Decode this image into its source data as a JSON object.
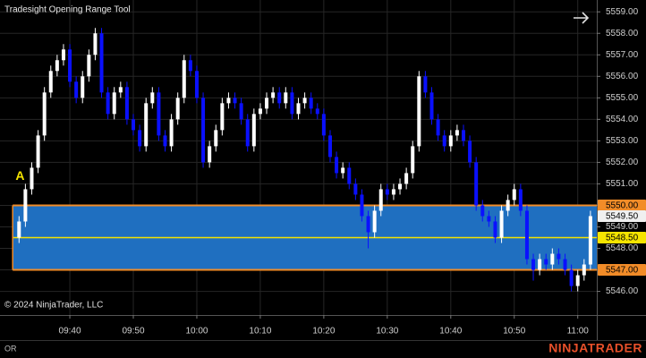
{
  "chart_data": {
    "type": "candlestick",
    "title": "Tradesight Opening Range Tool",
    "copyright": "© 2024 NinjaTrader, LLC",
    "footer_label": "OR",
    "brand": "NINJATRADER",
    "brand_color": "#e8502a",
    "up_color": "#ffffff",
    "down_color": "#0a10ff",
    "grid": true,
    "x": [
      "09:32",
      "09:33",
      "09:34",
      "09:35",
      "09:36",
      "09:37",
      "09:38",
      "09:39",
      "09:40",
      "09:41",
      "09:42",
      "09:43",
      "09:44",
      "09:45",
      "09:46",
      "09:47",
      "09:48",
      "09:49",
      "09:50",
      "09:51",
      "09:52",
      "09:53",
      "09:54",
      "09:55",
      "09:56",
      "09:57",
      "09:58",
      "09:59",
      "10:00",
      "10:01",
      "10:02",
      "10:03",
      "10:04",
      "10:05",
      "10:06",
      "10:07",
      "10:08",
      "10:09",
      "10:10",
      "10:11",
      "10:12",
      "10:13",
      "10:14",
      "10:15",
      "10:16",
      "10:17",
      "10:18",
      "10:19",
      "10:20",
      "10:21",
      "10:22",
      "10:23",
      "10:24",
      "10:25",
      "10:26",
      "10:27",
      "10:28",
      "10:29",
      "10:30",
      "10:31",
      "10:32",
      "10:33",
      "10:34",
      "10:35",
      "10:36",
      "10:37",
      "10:38",
      "10:39",
      "10:40",
      "10:41",
      "10:42",
      "10:43",
      "10:44",
      "10:45",
      "10:46",
      "10:47",
      "10:48",
      "10:49",
      "10:50",
      "10:51",
      "10:52",
      "10:53",
      "10:54",
      "10:55",
      "10:56",
      "10:57",
      "10:58",
      "10:59",
      "11:00",
      "11:01",
      "11:02"
    ],
    "open": [
      5548.5,
      5549.25,
      5550.75,
      5551.75,
      5553.25,
      5555.25,
      5556.25,
      5556.75,
      5557.25,
      5555.75,
      5555,
      5556,
      5557,
      5558,
      5555.25,
      5554.25,
      5555.25,
      5555.5,
      5554,
      5553.5,
      5552.75,
      5554.75,
      5555.25,
      5553.25,
      5552.75,
      5554,
      5555,
      5556.75,
      5556.25,
      5555,
      5552,
      5552.75,
      5553.5,
      5554.75,
      5555,
      5554.75,
      5554,
      5552.75,
      5554.25,
      5554.5,
      5555,
      5555.25,
      5554.75,
      5555.25,
      5554.25,
      5554.75,
      5555,
      5554.5,
      5554.25,
      5553.25,
      5552.25,
      5551.5,
      5551.75,
      5551,
      5550.5,
      5549.5,
      5548.75,
      5549.75,
      5550.75,
      5550.5,
      5550.75,
      5551,
      5551.5,
      5552.75,
      5556,
      5555.25,
      5554,
      5553.25,
      5552.75,
      5553.25,
      5553.5,
      5553,
      5552,
      5550,
      5549.5,
      5549.25,
      5548.5,
      5549.75,
      5550.25,
      5550.75,
      5549.75,
      5547.5,
      5547,
      5547.5,
      5547.25,
      5547.75,
      5547.5,
      5547,
      5546.25,
      5546.75,
      5547.25
    ],
    "high": [
      5549.5,
      5551,
      5552,
      5553.5,
      5555.5,
      5556.5,
      5557,
      5557.5,
      5557.5,
      5556,
      5556.25,
      5557.25,
      5558.25,
      5558.25,
      5555.5,
      5555.5,
      5555.75,
      5555.75,
      5554.25,
      5553.75,
      5555,
      5555.5,
      5555.5,
      5553.5,
      5554.25,
      5555.25,
      5557,
      5557,
      5556.5,
      5555.25,
      5553,
      5553.75,
      5555,
      5555.25,
      5555.25,
      5555,
      5554.25,
      5554.5,
      5554.75,
      5555.25,
      5555.5,
      5555.5,
      5555.5,
      5555.5,
      5555,
      5555.25,
      5555.25,
      5554.75,
      5554.5,
      5553.5,
      5552.5,
      5552,
      5552,
      5551.25,
      5550.75,
      5549.75,
      5550,
      5551,
      5551,
      5551,
      5551.25,
      5551.75,
      5553,
      5556.25,
      5556.25,
      5555.5,
      5554.25,
      5553.5,
      5553.5,
      5553.75,
      5553.75,
      5553.25,
      5552.25,
      5550.25,
      5549.75,
      5549.5,
      5550,
      5550.5,
      5551,
      5551,
      5550,
      5547.75,
      5547.75,
      5547.75,
      5548,
      5548,
      5547.75,
      5547.25,
      5547,
      5547.5,
      5549.75
    ],
    "low": [
      5548.25,
      5549,
      5550.5,
      5551.5,
      5553,
      5555,
      5556,
      5556.5,
      5555.5,
      5554.75,
      5554.75,
      5555.75,
      5556.75,
      5555,
      5554,
      5554,
      5555,
      5553.75,
      5553.25,
      5552.5,
      5552.5,
      5554.5,
      5553,
      5552.5,
      5552.5,
      5553.75,
      5554.75,
      5556,
      5554.75,
      5551.75,
      5551.75,
      5552.5,
      5553.25,
      5554.5,
      5554.5,
      5553.75,
      5552.5,
      5552.5,
      5554,
      5554.25,
      5554.75,
      5554.5,
      5554.5,
      5554,
      5554,
      5554.5,
      5554.25,
      5554,
      5553,
      5552,
      5551.25,
      5551.25,
      5550.75,
      5550.25,
      5549.25,
      5548,
      5548.5,
      5549.5,
      5550.25,
      5550.25,
      5550.5,
      5550.75,
      5551.25,
      5552.5,
      5555,
      5553.75,
      5553,
      5552.5,
      5552.5,
      5553,
      5552.75,
      5551.75,
      5549.75,
      5549.25,
      5549,
      5548.25,
      5548.25,
      5549.5,
      5550,
      5549.5,
      5547.25,
      5546.5,
      5546.75,
      5547,
      5547,
      5547.25,
      5546.75,
      5546,
      5546,
      5546.5,
      5547
    ],
    "close": [
      5549.25,
      5550.75,
      5551.75,
      5553.25,
      5555.25,
      5556.25,
      5556.75,
      5557.25,
      5555.75,
      5555,
      5556,
      5557,
      5558,
      5555.25,
      5554.25,
      5555.25,
      5555.5,
      5554,
      5553.5,
      5552.75,
      5554.75,
      5555.25,
      5553.25,
      5552.75,
      5554,
      5555,
      5556.75,
      5556.25,
      5555,
      5552,
      5552.75,
      5553.5,
      5554.75,
      5555,
      5554.75,
      5554,
      5552.75,
      5554.25,
      5554.5,
      5555,
      5555.25,
      5554.75,
      5555.25,
      5554.25,
      5554.75,
      5555,
      5554.5,
      5554.25,
      5553.25,
      5552.25,
      5551.5,
      5551.75,
      5551,
      5550.5,
      5549.5,
      5548.75,
      5549.75,
      5550.75,
      5550.5,
      5550.75,
      5551,
      5551.5,
      5552.75,
      5556,
      5555.25,
      5554,
      5553.25,
      5552.75,
      5553.25,
      5553.5,
      5553,
      5552,
      5550,
      5549.5,
      5549.25,
      5548.5,
      5549.75,
      5550.25,
      5550.75,
      5549.75,
      5547.5,
      5547,
      5547.5,
      5547.25,
      5547.75,
      5547.5,
      5547,
      5546.25,
      5546.75,
      5547.25,
      5549.5
    ],
    "xlim": [
      "09:29",
      "11:03"
    ],
    "xticks": [
      "09:40",
      "09:50",
      "10:00",
      "10:10",
      "10:20",
      "10:30",
      "10:40",
      "10:50",
      "11:00"
    ],
    "ylim": [
      5544.9,
      5559.55
    ],
    "yticks": [
      {
        "value": 5546,
        "label": "5546.00"
      },
      {
        "value": 5547,
        "label": "5547.00"
      },
      {
        "value": 5548,
        "label": "5548.00"
      },
      {
        "value": 5549,
        "label": "5549.00"
      },
      {
        "value": 5550,
        "label": "5550.00"
      },
      {
        "value": 5551,
        "label": "5551.00"
      },
      {
        "value": 5552,
        "label": "5552.00"
      },
      {
        "value": 5553,
        "label": "5553.00"
      },
      {
        "value": 5554,
        "label": "5554.00"
      },
      {
        "value": 5555,
        "label": "5555.00"
      },
      {
        "value": 5556,
        "label": "5556.00"
      },
      {
        "value": 5557,
        "label": "5557.00"
      },
      {
        "value": 5558,
        "label": "5558.00"
      },
      {
        "value": 5559,
        "label": "5559.00"
      }
    ],
    "annotations": [
      {
        "text": "A",
        "x": "09:33",
        "color": "#f5e400"
      }
    ],
    "opening_range": {
      "start": "09:31",
      "fill": "#1f6fc0",
      "edge_color": "#f28c28",
      "mid_color": "#f5e400",
      "high": {
        "value": 5550,
        "label": "5550.00"
      },
      "mid": {
        "value": 5548.5,
        "label": "5548.50"
      },
      "low": {
        "value": 5547,
        "label": "5547.00"
      }
    },
    "last_price": {
      "value": 5549.5,
      "label": "5549.50",
      "color": "#f0f0f0"
    }
  }
}
